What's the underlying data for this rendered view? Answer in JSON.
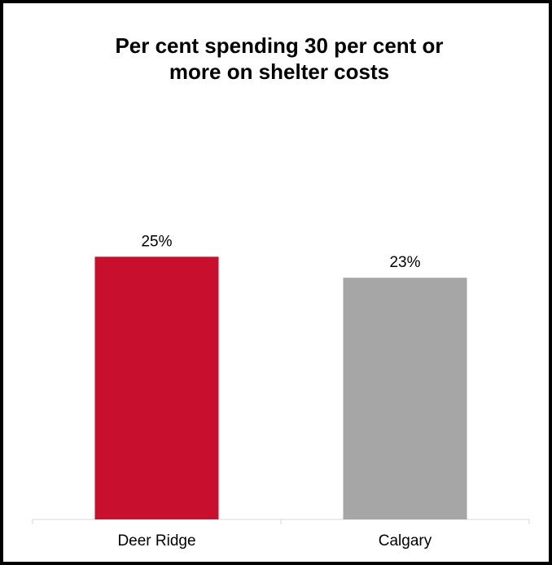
{
  "chart_data": {
    "type": "bar",
    "title": "Per cent spending 30 per cent or more on shelter costs",
    "title_lines": [
      "Per cent spending 30 per cent or",
      "more on shelter costs"
    ],
    "categories": [
      "Deer Ridge",
      "Calgary"
    ],
    "values": [
      25,
      23
    ],
    "data_labels": [
      "25%",
      "23%"
    ],
    "colors": [
      "#c8102e",
      "#a6a6a6"
    ],
    "axis_color": "#d9d9d9",
    "xlabel": "",
    "ylabel": "",
    "ylim": [
      0,
      32
    ],
    "grid": false,
    "legend": "none"
  }
}
